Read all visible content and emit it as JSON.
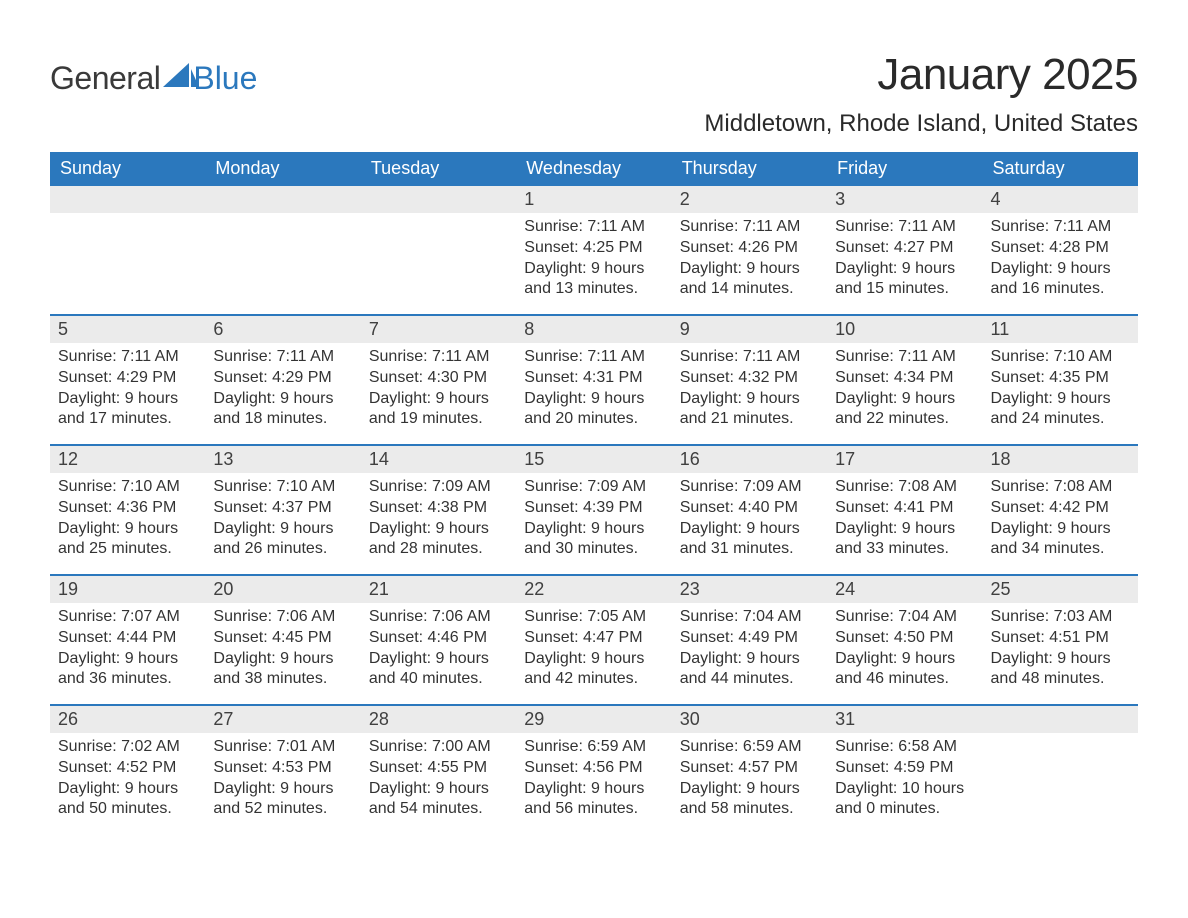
{
  "branding": {
    "logo_word1": "General",
    "logo_word2": "Blue",
    "brand_color": "#2b78bd",
    "text_color": "#333333",
    "daynum_bg": "#ebebeb"
  },
  "title": "January 2025",
  "location": "Middletown, Rhode Island, United States",
  "weekdays": [
    "Sunday",
    "Monday",
    "Tuesday",
    "Wednesday",
    "Thursday",
    "Friday",
    "Saturday"
  ],
  "weeks": [
    [
      {
        "n": "",
        "sunrise": "",
        "sunset": "",
        "daylight": "",
        "empty": true
      },
      {
        "n": "",
        "sunrise": "",
        "sunset": "",
        "daylight": "",
        "empty": true
      },
      {
        "n": "",
        "sunrise": "",
        "sunset": "",
        "daylight": "",
        "empty": true
      },
      {
        "n": "1",
        "sunrise": "Sunrise: 7:11 AM",
        "sunset": "Sunset: 4:25 PM",
        "daylight": "Daylight: 9 hours and 13 minutes."
      },
      {
        "n": "2",
        "sunrise": "Sunrise: 7:11 AM",
        "sunset": "Sunset: 4:26 PM",
        "daylight": "Daylight: 9 hours and 14 minutes."
      },
      {
        "n": "3",
        "sunrise": "Sunrise: 7:11 AM",
        "sunset": "Sunset: 4:27 PM",
        "daylight": "Daylight: 9 hours and 15 minutes."
      },
      {
        "n": "4",
        "sunrise": "Sunrise: 7:11 AM",
        "sunset": "Sunset: 4:28 PM",
        "daylight": "Daylight: 9 hours and 16 minutes."
      }
    ],
    [
      {
        "n": "5",
        "sunrise": "Sunrise: 7:11 AM",
        "sunset": "Sunset: 4:29 PM",
        "daylight": "Daylight: 9 hours and 17 minutes."
      },
      {
        "n": "6",
        "sunrise": "Sunrise: 7:11 AM",
        "sunset": "Sunset: 4:29 PM",
        "daylight": "Daylight: 9 hours and 18 minutes."
      },
      {
        "n": "7",
        "sunrise": "Sunrise: 7:11 AM",
        "sunset": "Sunset: 4:30 PM",
        "daylight": "Daylight: 9 hours and 19 minutes."
      },
      {
        "n": "8",
        "sunrise": "Sunrise: 7:11 AM",
        "sunset": "Sunset: 4:31 PM",
        "daylight": "Daylight: 9 hours and 20 minutes."
      },
      {
        "n": "9",
        "sunrise": "Sunrise: 7:11 AM",
        "sunset": "Sunset: 4:32 PM",
        "daylight": "Daylight: 9 hours and 21 minutes."
      },
      {
        "n": "10",
        "sunrise": "Sunrise: 7:11 AM",
        "sunset": "Sunset: 4:34 PM",
        "daylight": "Daylight: 9 hours and 22 minutes."
      },
      {
        "n": "11",
        "sunrise": "Sunrise: 7:10 AM",
        "sunset": "Sunset: 4:35 PM",
        "daylight": "Daylight: 9 hours and 24 minutes."
      }
    ],
    [
      {
        "n": "12",
        "sunrise": "Sunrise: 7:10 AM",
        "sunset": "Sunset: 4:36 PM",
        "daylight": "Daylight: 9 hours and 25 minutes."
      },
      {
        "n": "13",
        "sunrise": "Sunrise: 7:10 AM",
        "sunset": "Sunset: 4:37 PM",
        "daylight": "Daylight: 9 hours and 26 minutes."
      },
      {
        "n": "14",
        "sunrise": "Sunrise: 7:09 AM",
        "sunset": "Sunset: 4:38 PM",
        "daylight": "Daylight: 9 hours and 28 minutes."
      },
      {
        "n": "15",
        "sunrise": "Sunrise: 7:09 AM",
        "sunset": "Sunset: 4:39 PM",
        "daylight": "Daylight: 9 hours and 30 minutes."
      },
      {
        "n": "16",
        "sunrise": "Sunrise: 7:09 AM",
        "sunset": "Sunset: 4:40 PM",
        "daylight": "Daylight: 9 hours and 31 minutes."
      },
      {
        "n": "17",
        "sunrise": "Sunrise: 7:08 AM",
        "sunset": "Sunset: 4:41 PM",
        "daylight": "Daylight: 9 hours and 33 minutes."
      },
      {
        "n": "18",
        "sunrise": "Sunrise: 7:08 AM",
        "sunset": "Sunset: 4:42 PM",
        "daylight": "Daylight: 9 hours and 34 minutes."
      }
    ],
    [
      {
        "n": "19",
        "sunrise": "Sunrise: 7:07 AM",
        "sunset": "Sunset: 4:44 PM",
        "daylight": "Daylight: 9 hours and 36 minutes."
      },
      {
        "n": "20",
        "sunrise": "Sunrise: 7:06 AM",
        "sunset": "Sunset: 4:45 PM",
        "daylight": "Daylight: 9 hours and 38 minutes."
      },
      {
        "n": "21",
        "sunrise": "Sunrise: 7:06 AM",
        "sunset": "Sunset: 4:46 PM",
        "daylight": "Daylight: 9 hours and 40 minutes."
      },
      {
        "n": "22",
        "sunrise": "Sunrise: 7:05 AM",
        "sunset": "Sunset: 4:47 PM",
        "daylight": "Daylight: 9 hours and 42 minutes."
      },
      {
        "n": "23",
        "sunrise": "Sunrise: 7:04 AM",
        "sunset": "Sunset: 4:49 PM",
        "daylight": "Daylight: 9 hours and 44 minutes."
      },
      {
        "n": "24",
        "sunrise": "Sunrise: 7:04 AM",
        "sunset": "Sunset: 4:50 PM",
        "daylight": "Daylight: 9 hours and 46 minutes."
      },
      {
        "n": "25",
        "sunrise": "Sunrise: 7:03 AM",
        "sunset": "Sunset: 4:51 PM",
        "daylight": "Daylight: 9 hours and 48 minutes."
      }
    ],
    [
      {
        "n": "26",
        "sunrise": "Sunrise: 7:02 AM",
        "sunset": "Sunset: 4:52 PM",
        "daylight": "Daylight: 9 hours and 50 minutes."
      },
      {
        "n": "27",
        "sunrise": "Sunrise: 7:01 AM",
        "sunset": "Sunset: 4:53 PM",
        "daylight": "Daylight: 9 hours and 52 minutes."
      },
      {
        "n": "28",
        "sunrise": "Sunrise: 7:00 AM",
        "sunset": "Sunset: 4:55 PM",
        "daylight": "Daylight: 9 hours and 54 minutes."
      },
      {
        "n": "29",
        "sunrise": "Sunrise: 6:59 AM",
        "sunset": "Sunset: 4:56 PM",
        "daylight": "Daylight: 9 hours and 56 minutes."
      },
      {
        "n": "30",
        "sunrise": "Sunrise: 6:59 AM",
        "sunset": "Sunset: 4:57 PM",
        "daylight": "Daylight: 9 hours and 58 minutes."
      },
      {
        "n": "31",
        "sunrise": "Sunrise: 6:58 AM",
        "sunset": "Sunset: 4:59 PM",
        "daylight": "Daylight: 10 hours and 0 minutes."
      },
      {
        "n": "",
        "sunrise": "",
        "sunset": "",
        "daylight": "",
        "empty": true
      }
    ]
  ]
}
